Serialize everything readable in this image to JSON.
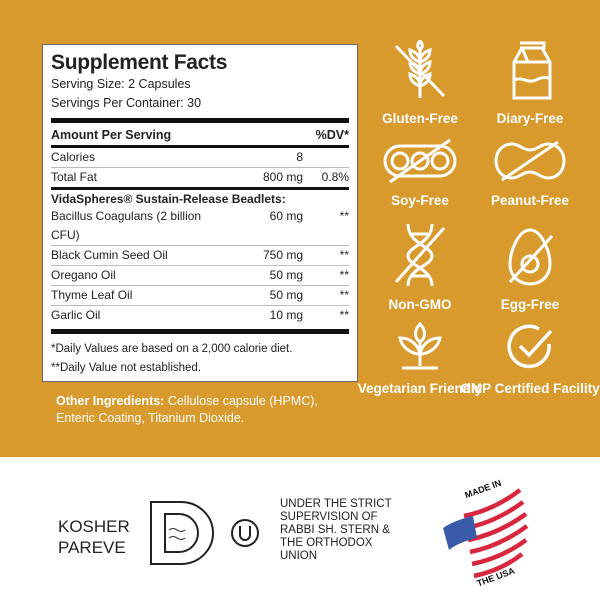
{
  "facts": {
    "title": "Supplement Facts",
    "serving_size": "Serving Size: 2 Capsules",
    "servings_per_container": "Servings Per Container: 30",
    "header": {
      "amount": "Amount Per Serving",
      "dv": "%DV*"
    },
    "rows": [
      {
        "name": "Calories",
        "amount": "8",
        "dv": ""
      },
      {
        "name": "Total Fat",
        "amount": "800 mg",
        "dv": "0.8%"
      }
    ],
    "blend_title": "VidaSpheres® Sustain-Release Beadlets:",
    "blend": [
      {
        "name": "Bacillus Coagulans (2 billion CFU)",
        "amount": "60 mg",
        "dv": "**"
      },
      {
        "name": "Black Cumin Seed Oil",
        "amount": "750 mg",
        "dv": "**"
      },
      {
        "name": "Oregano Oil",
        "amount": "50 mg",
        "dv": "**"
      },
      {
        "name": "Thyme Leaf Oil",
        "amount": "50 mg",
        "dv": "**"
      },
      {
        "name": "Garlic Oil",
        "amount": "10 mg",
        "dv": "**"
      }
    ],
    "footnote1": "*Daily Values are based on a 2,000 calorie diet.",
    "footnote2": "**Daily Value not established."
  },
  "other": {
    "label": "Other Ingredients:",
    "text": " Cellulose capsule (HPMC), Enteric Coating, Titanium Dioxide."
  },
  "badges": [
    {
      "label": "Gluten-Free",
      "icon": "wheat-icon"
    },
    {
      "label": "Diary-Free",
      "icon": "milk-carton-icon"
    },
    {
      "label": "Soy-Free",
      "icon": "soybean-icon"
    },
    {
      "label": "Peanut-Free",
      "icon": "peanut-icon"
    },
    {
      "label": "Non-GMO",
      "icon": "dna-icon"
    },
    {
      "label": "Egg-Free",
      "icon": "egg-icon"
    },
    {
      "label": "Vegetarian Friendly",
      "icon": "leaf-icon"
    },
    {
      "label": "GMP Certified Facility",
      "icon": "checkmark-icon"
    }
  ],
  "kosher": {
    "line1": "KOSHER",
    "line2": "PAREVE",
    "supervision": [
      "UNDER THE STRICT",
      "SUPERVISION OF",
      "RABBI SH. STERN &",
      "THE ORTHODOX",
      "UNION"
    ]
  },
  "made_in": {
    "top": "MADE IN",
    "bottom": "THE USA"
  },
  "colors": {
    "gold": "#D89A2C",
    "flag_red": "#D7263D",
    "flag_blue": "#3A5BA9"
  }
}
